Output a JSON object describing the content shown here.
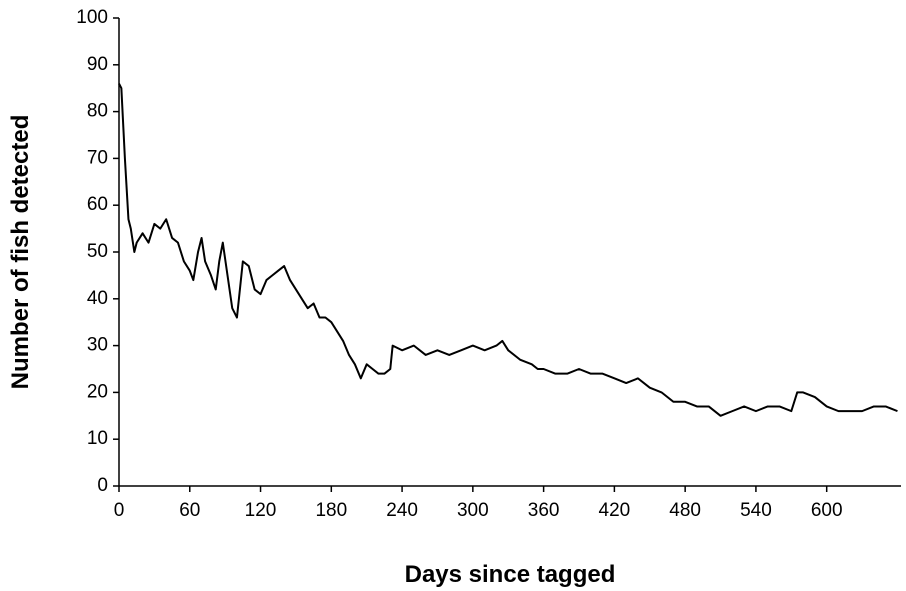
{
  "chart_data": {
    "type": "line",
    "x_label": "Days since tagged",
    "y_label": "Number of fish detected",
    "x": [
      0,
      2,
      5,
      8,
      10,
      13,
      15,
      20,
      25,
      30,
      35,
      40,
      45,
      50,
      55,
      60,
      63,
      67,
      70,
      73,
      78,
      82,
      85,
      88,
      92,
      96,
      100,
      105,
      110,
      115,
      120,
      125,
      130,
      135,
      140,
      145,
      150,
      155,
      160,
      165,
      170,
      175,
      180,
      185,
      190,
      195,
      200,
      205,
      210,
      215,
      220,
      225,
      230,
      232,
      240,
      250,
      260,
      270,
      280,
      290,
      300,
      310,
      320,
      325,
      330,
      340,
      350,
      355,
      360,
      370,
      380,
      390,
      400,
      410,
      420,
      430,
      440,
      450,
      460,
      470,
      480,
      490,
      500,
      510,
      520,
      530,
      540,
      550,
      560,
      570,
      575,
      580,
      590,
      600,
      610,
      620,
      630,
      640,
      650,
      660
    ],
    "series": [
      {
        "name": "Fish detected",
        "color": "#000000",
        "values": [
          86,
          85,
          70,
          57,
          55,
          50,
          52,
          54,
          52,
          56,
          55,
          57,
          53,
          52,
          48,
          46,
          44,
          50,
          53,
          48,
          45,
          42,
          48,
          52,
          45,
          38,
          36,
          48,
          47,
          42,
          41,
          44,
          45,
          46,
          47,
          44,
          42,
          40,
          38,
          39,
          36,
          36,
          35,
          33,
          31,
          28,
          26,
          23,
          26,
          25,
          24,
          24,
          25,
          30,
          29,
          30,
          28,
          29,
          28,
          29,
          30,
          29,
          30,
          31,
          29,
          27,
          26,
          25,
          25,
          24,
          24,
          25,
          24,
          24,
          23,
          22,
          23,
          21,
          20,
          18,
          18,
          17,
          17,
          15,
          16,
          17,
          16,
          17,
          17,
          16,
          20,
          20,
          19,
          17,
          16,
          16,
          16,
          17,
          17,
          16
        ]
      }
    ],
    "xlim": [
      0,
      663
    ],
    "ylim": [
      0,
      100
    ],
    "xticks": [
      0,
      60,
      120,
      180,
      240,
      300,
      360,
      420,
      480,
      540,
      600
    ],
    "yticks": [
      0,
      10,
      20,
      30,
      40,
      50,
      60,
      70,
      80,
      90,
      100
    ],
    "grid": false
  }
}
